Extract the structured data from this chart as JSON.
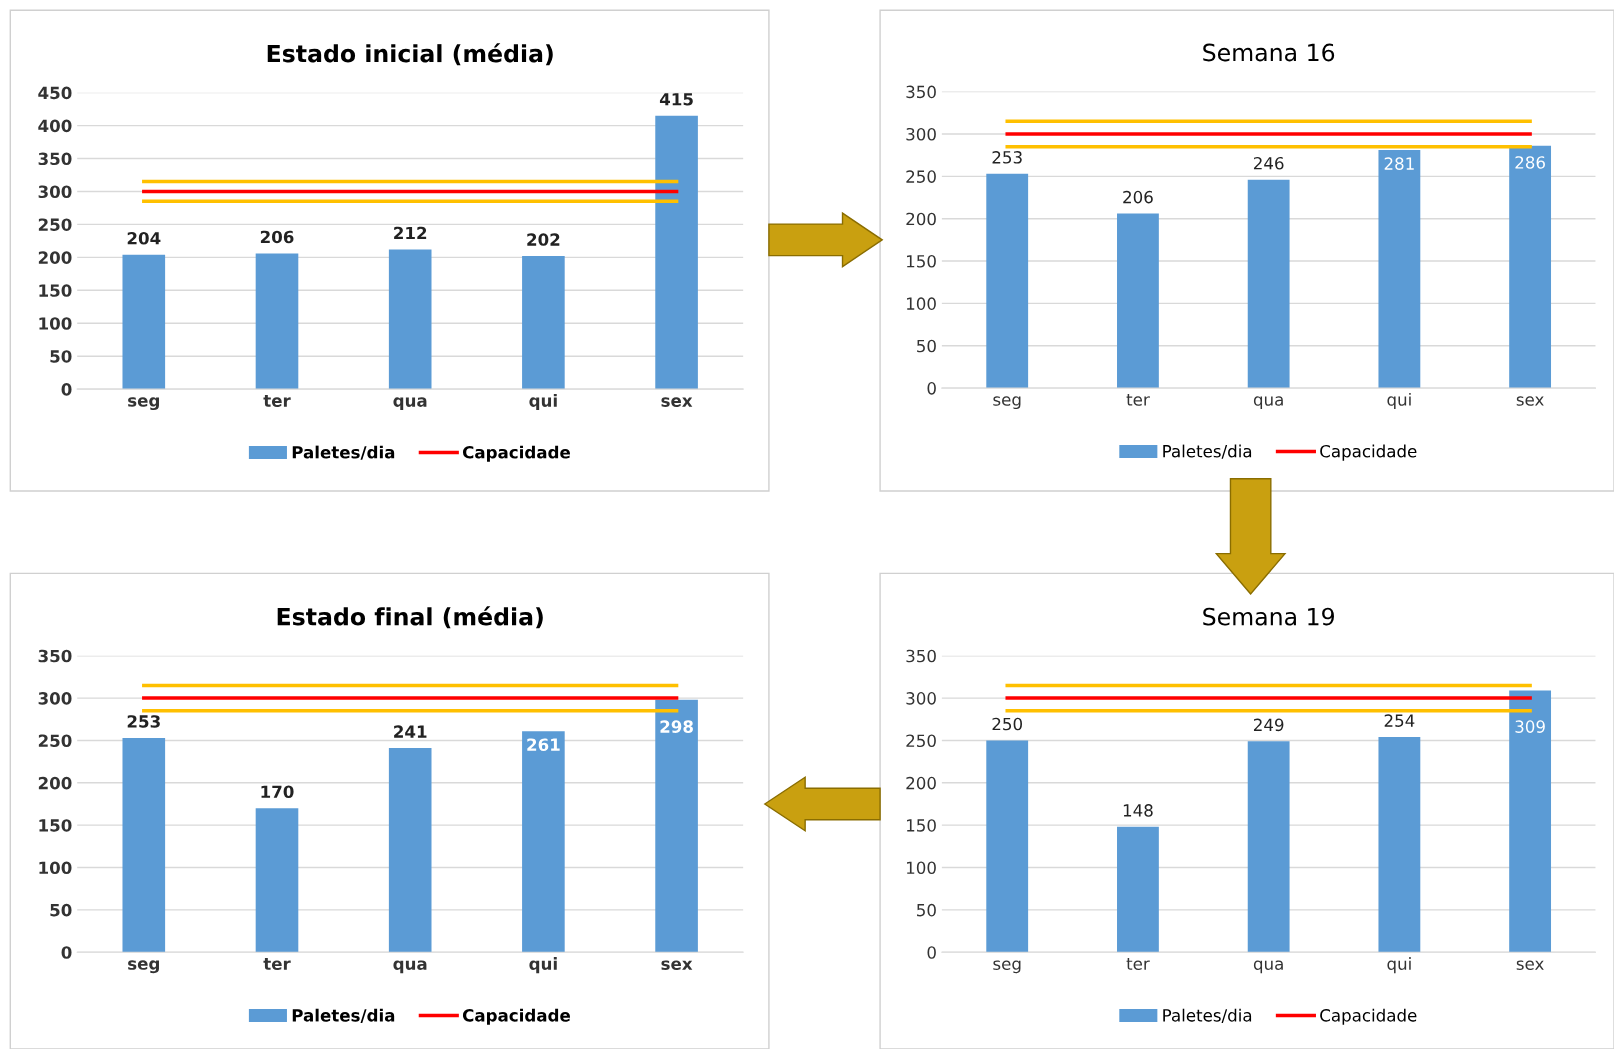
{
  "chart_data": [
    {
      "type": "bar",
      "title": "Estado inicial (média)",
      "categories": [
        "seg",
        "ter",
        "qua",
        "qui",
        "sex"
      ],
      "ylim": [
        0,
        450
      ],
      "yticks": [
        0,
        50,
        100,
        150,
        200,
        250,
        300,
        350,
        400,
        450
      ],
      "grid": "y",
      "legend": "bottom",
      "series": [
        {
          "name": "Paletes/dia",
          "type": "bar",
          "color": "#5b9bd5",
          "values": [
            204,
            206,
            212,
            202,
            415
          ],
          "value_labels": [
            "204",
            "206",
            "212",
            "202",
            "415"
          ]
        },
        {
          "type": "line",
          "color": "#ffc000",
          "values": [
            315,
            315,
            315,
            315,
            315
          ]
        },
        {
          "name": "Capacidade",
          "type": "line",
          "color": "#ff0000",
          "values": [
            300,
            300,
            300,
            300,
            300
          ]
        },
        {
          "type": "line",
          "color": "#ffc000",
          "values": [
            285,
            285,
            285,
            285,
            285
          ]
        }
      ]
    },
    {
      "type": "bar",
      "title": "Semana 16",
      "categories": [
        "seg",
        "ter",
        "qua",
        "qui",
        "sex"
      ],
      "ylim": [
        0,
        350
      ],
      "yticks": [
        0,
        50,
        100,
        150,
        200,
        250,
        300,
        350
      ],
      "grid": "y",
      "legend": "bottom",
      "series": [
        {
          "name": "Paletes/dia",
          "type": "bar",
          "color": "#5b9bd5",
          "values": [
            253,
            206,
            246,
            281,
            286
          ],
          "value_labels": [
            "253",
            "206",
            "246",
            "281",
            "286"
          ]
        },
        {
          "type": "line",
          "color": "#ffc000",
          "values": [
            315,
            315,
            315,
            315,
            315
          ]
        },
        {
          "name": "Capacidade",
          "type": "line",
          "color": "#ff0000",
          "values": [
            300,
            300,
            300,
            300,
            300
          ]
        },
        {
          "type": "line",
          "color": "#ffc000",
          "values": [
            285,
            285,
            285,
            285,
            285
          ]
        }
      ]
    },
    {
      "type": "bar",
      "title": "Estado final (média)",
      "categories": [
        "seg",
        "ter",
        "qua",
        "qui",
        "sex"
      ],
      "ylim": [
        0,
        350
      ],
      "yticks": [
        0,
        50,
        100,
        150,
        200,
        250,
        300,
        350
      ],
      "grid": "y",
      "legend": "bottom",
      "series": [
        {
          "name": "Paletes/dia",
          "type": "bar",
          "color": "#5b9bd5",
          "values": [
            253,
            170,
            241,
            261,
            298
          ],
          "value_labels": [
            "253",
            "170",
            "241",
            "261",
            "298"
          ]
        },
        {
          "type": "line",
          "color": "#ffc000",
          "values": [
            315,
            315,
            315,
            315,
            315
          ]
        },
        {
          "name": "Capacidade",
          "type": "line",
          "color": "#ff0000",
          "values": [
            300,
            300,
            300,
            300,
            300
          ]
        },
        {
          "type": "line",
          "color": "#ffc000",
          "values": [
            285,
            285,
            285,
            285,
            285
          ]
        }
      ]
    },
    {
      "type": "bar",
      "title": "Semana 19",
      "categories": [
        "seg",
        "ter",
        "qua",
        "qui",
        "sex"
      ],
      "ylim": [
        0,
        350
      ],
      "yticks": [
        0,
        50,
        100,
        150,
        200,
        250,
        300,
        350
      ],
      "grid": "y",
      "legend": "bottom",
      "series": [
        {
          "name": "Paletes/dia",
          "type": "bar",
          "color": "#5b9bd5",
          "values": [
            250,
            148,
            249,
            254,
            309
          ],
          "value_labels": [
            "250",
            "148",
            "249",
            "254",
            "309"
          ]
        },
        {
          "type": "line",
          "color": "#ffc000",
          "values": [
            315,
            315,
            315,
            315,
            315
          ]
        },
        {
          "name": "Capacidade",
          "type": "line",
          "color": "#ff0000",
          "values": [
            300,
            300,
            300,
            300,
            300
          ]
        },
        {
          "type": "line",
          "color": "#ffc000",
          "values": [
            285,
            285,
            285,
            285,
            285
          ]
        }
      ]
    }
  ]
}
